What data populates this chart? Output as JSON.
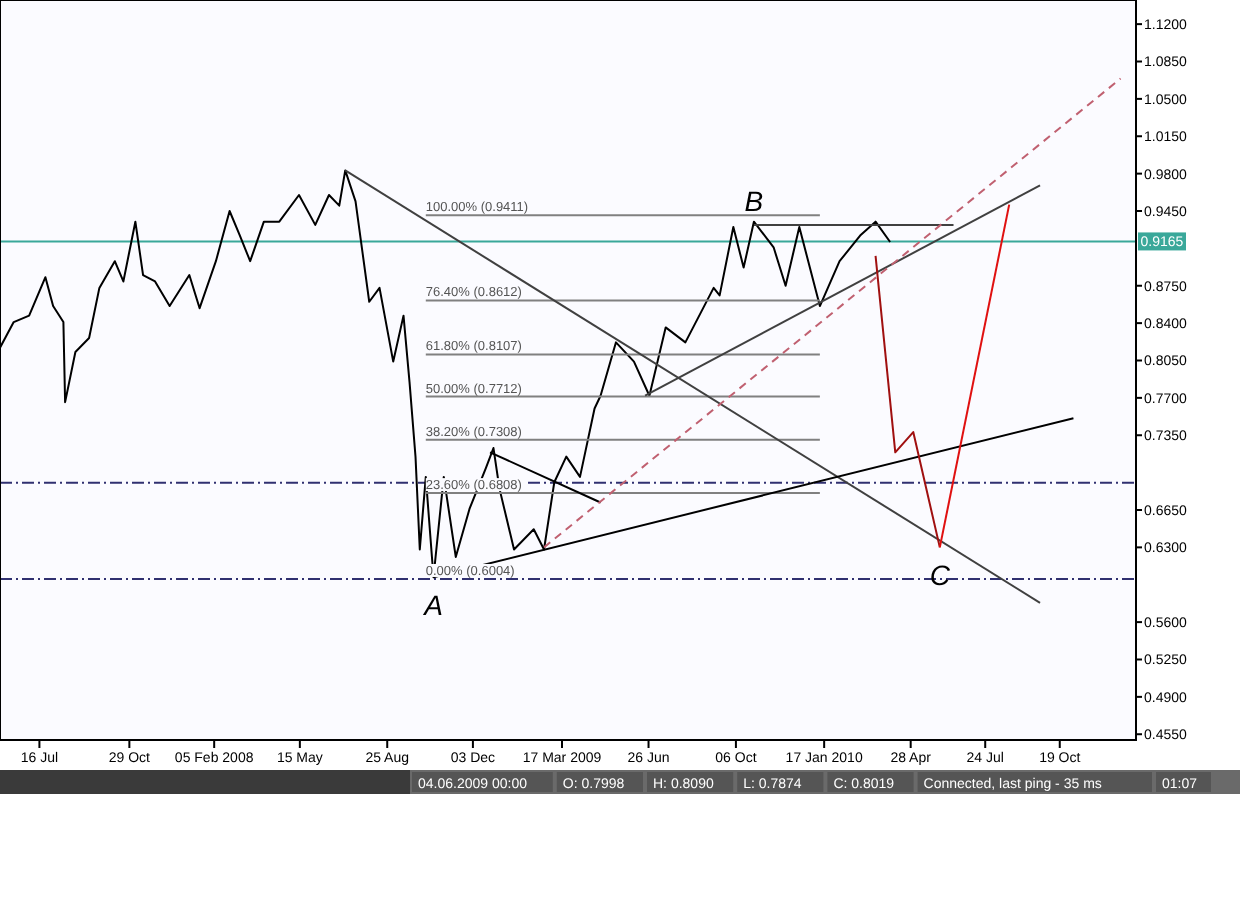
{
  "chart_data": {
    "type": "line",
    "xlim": [
      "2007-05-31",
      "2011-01-16"
    ],
    "xticks": [
      {
        "value": "2007-07-16",
        "label": "16 Jul"
      },
      {
        "value": "2007-10-29",
        "label": "29 Oct"
      },
      {
        "value": "2008-02-05",
        "label": "05 Feb 2008"
      },
      {
        "value": "2008-05-15",
        "label": "15 May"
      },
      {
        "value": "2008-08-25",
        "label": "25 Aug"
      },
      {
        "value": "2008-12-03",
        "label": "03 Dec"
      },
      {
        "value": "2009-03-17",
        "label": "17 Mar 2009"
      },
      {
        "value": "2009-06-26",
        "label": "26 Jun"
      },
      {
        "value": "2009-10-06",
        "label": "06 Oct"
      },
      {
        "value": "2010-01-17",
        "label": "17 Jan 2010"
      },
      {
        "value": "2010-04-28",
        "label": "28 Apr"
      },
      {
        "value": "2010-07-24",
        "label": "24 Jul"
      },
      {
        "value": "2010-10-19",
        "label": "19 Oct"
      }
    ],
    "ylim": [
      0.4496,
      1.1426
    ],
    "yticks": [
      {
        "value": 1.12,
        "label": "1.1200"
      },
      {
        "value": 1.085,
        "label": "1.0850"
      },
      {
        "value": 1.05,
        "label": "1.0500"
      },
      {
        "value": 1.015,
        "label": "1.0150"
      },
      {
        "value": 0.98,
        "label": "0.9800"
      },
      {
        "value": 0.945,
        "label": "0.9450"
      },
      {
        "value": 0.875,
        "label": "0.8750"
      },
      {
        "value": 0.84,
        "label": "0.8400"
      },
      {
        "value": 0.805,
        "label": "0.8050"
      },
      {
        "value": 0.77,
        "label": "0.7700"
      },
      {
        "value": 0.735,
        "label": "0.7350"
      },
      {
        "value": 0.665,
        "label": "0.6650"
      },
      {
        "value": 0.63,
        "label": "0.6300"
      },
      {
        "value": 0.56,
        "label": "0.5600"
      },
      {
        "value": 0.525,
        "label": "0.5250"
      },
      {
        "value": 0.49,
        "label": "0.4900"
      },
      {
        "value": 0.455,
        "label": "0.4550"
      }
    ],
    "grid": false,
    "series": [
      {
        "type": "line",
        "color": "#000000",
        "x": [
          "2007-05-31",
          "2007-06-16",
          "2007-07-04",
          "2007-07-23",
          "2007-08-01",
          "2007-08-13",
          "2007-08-15",
          "2007-08-27",
          "2007-09-12",
          "2007-09-24",
          "2007-10-12",
          "2007-10-22",
          "2007-11-05",
          "2007-11-14",
          "2007-11-28",
          "2007-12-15",
          "2008-01-07",
          "2008-01-19",
          "2008-02-07",
          "2008-02-23",
          "2008-03-06",
          "2008-03-18",
          "2008-04-03",
          "2008-04-21",
          "2008-05-14",
          "2008-06-02",
          "2008-06-18",
          "2008-06-30",
          "2008-07-07",
          "2008-07-19",
          "2008-08-04",
          "2008-08-16",
          "2008-09-01",
          "2008-09-13",
          "2008-09-20",
          "2008-09-27",
          "2008-10-02",
          "2008-10-09",
          "2008-10-18",
          "2008-10-30",
          "2008-11-13",
          "2008-11-29",
          "2008-12-18",
          "2008-12-27",
          "2009-01-03",
          "2009-01-20",
          "2009-02-12",
          "2009-02-24",
          "2009-03-08",
          "2009-03-22",
          "2009-04-07",
          "2009-04-24",
          "2009-05-01",
          "2009-05-19",
          "2009-06-09",
          "2009-06-27",
          "2009-07-16",
          "2009-08-08",
          "2009-09-10",
          "2009-09-17",
          "2009-10-03",
          "2009-10-15",
          "2009-10-27",
          "2009-11-19",
          "2009-12-03",
          "2009-12-19",
          "2010-01-12",
          "2010-02-04",
          "2010-02-28",
          "2010-03-18",
          "2010-04-04"
        ],
        "values": [
          0.817,
          0.841,
          0.847,
          0.883,
          0.856,
          0.841,
          0.766,
          0.813,
          0.826,
          0.873,
          0.898,
          0.879,
          0.935,
          0.885,
          0.879,
          0.856,
          0.885,
          0.854,
          0.898,
          0.945,
          0.922,
          0.898,
          0.935,
          0.935,
          0.96,
          0.932,
          0.96,
          0.95,
          0.983,
          0.954,
          0.86,
          0.873,
          0.804,
          0.847,
          0.785,
          0.715,
          0.628,
          0.696,
          0.602,
          0.696,
          0.621,
          0.666,
          0.704,
          0.723,
          0.685,
          0.628,
          0.647,
          0.628,
          0.691,
          0.715,
          0.696,
          0.76,
          0.772,
          0.822,
          0.804,
          0.772,
          0.836,
          0.822,
          0.873,
          0.866,
          0.93,
          0.892,
          0.935,
          0.911,
          0.875,
          0.93,
          0.856,
          0.898,
          0.922,
          0.935,
          0.916
        ]
      },
      {
        "type": "line",
        "color": "#808080",
        "x": [
          "2008-10-09",
          "2010-01-12"
        ],
        "values": [
          0.9411,
          0.9411
        ]
      },
      {
        "type": "line",
        "color": "#808080",
        "x": [
          "2008-10-09",
          "2010-01-12"
        ],
        "values": [
          0.8612,
          0.8612
        ]
      },
      {
        "type": "line",
        "color": "#808080",
        "x": [
          "2008-10-09",
          "2010-01-12"
        ],
        "values": [
          0.8107,
          0.8107
        ]
      },
      {
        "type": "line",
        "color": "#808080",
        "x": [
          "2008-10-09",
          "2010-01-12"
        ],
        "values": [
          0.7712,
          0.7712
        ]
      },
      {
        "type": "line",
        "color": "#808080",
        "x": [
          "2008-10-09",
          "2010-01-12"
        ],
        "values": [
          0.7308,
          0.7308
        ]
      },
      {
        "type": "line",
        "color": "#808080",
        "x": [
          "2008-10-09",
          "2010-01-12"
        ],
        "values": [
          0.6808,
          0.6808
        ]
      },
      {
        "type": "line",
        "color": "#404040",
        "x": [
          "2008-07-07",
          "2010-09-26"
        ],
        "values": [
          0.983,
          0.578
        ]
      },
      {
        "type": "line",
        "color": "#000000",
        "x": [
          "2008-10-18",
          "2010-11-04"
        ],
        "values": [
          0.602,
          0.751
        ]
      },
      {
        "type": "line",
        "color": "#000000",
        "x": [
          "2008-12-23",
          "2009-05-01"
        ],
        "values": [
          0.719,
          0.672
        ]
      },
      {
        "type": "line",
        "color": "#404040",
        "x": [
          "2009-06-22",
          "2010-09-26"
        ],
        "values": [
          0.772,
          0.969
        ]
      },
      {
        "type": "line",
        "color": "#404040",
        "x": [
          "2009-10-27",
          "2010-06-17"
        ],
        "values": [
          0.932,
          0.932
        ]
      },
      {
        "type": "line",
        "color": "#c06070",
        "line_style": "dashed",
        "x": [
          "2009-02-24",
          "2010-12-29"
        ],
        "values": [
          0.63,
          1.069
        ]
      },
      {
        "type": "line",
        "color": "#a01010",
        "x": [
          "2010-03-18",
          "2010-04-10",
          "2010-05-01",
          "2010-06-01"
        ],
        "values": [
          0.903,
          0.719,
          0.738,
          0.63
        ]
      },
      {
        "type": "line",
        "color": "#e01010",
        "x": [
          "2010-06-01",
          "2010-08-21"
        ],
        "values": [
          0.63,
          0.951
        ]
      }
    ],
    "ref_lines": [
      {
        "axis": "y",
        "value": 0.9165,
        "label": "0.9165",
        "color": "#3aa89a"
      },
      {
        "axis": "y",
        "value": 0.6906,
        "color": "#303070",
        "line_style": "dashdot"
      },
      {
        "axis": "y",
        "value": 0.6004,
        "color": "#303070",
        "line_style": "dashdot"
      }
    ],
    "annotations": [
      {
        "text": "100.00% (0.9411)",
        "x": "2008-10-09",
        "y": 0.9411
      },
      {
        "text": "76.40% (0.8612)",
        "x": "2008-10-09",
        "y": 0.8612
      },
      {
        "text": "61.80% (0.8107)",
        "x": "2008-10-09",
        "y": 0.8107
      },
      {
        "text": "50.00% (0.7712)",
        "x": "2008-10-09",
        "y": 0.7712
      },
      {
        "text": "38.20% (0.7308)",
        "x": "2008-10-09",
        "y": 0.7308
      },
      {
        "text": "23.60% (0.6808)",
        "x": "2008-10-09",
        "y": 0.6808
      },
      {
        "text": "0.00% (0.6004)",
        "x": "2008-10-09",
        "y": 0.6004
      },
      {
        "text": "A",
        "x": "2008-10-18",
        "y": 0.602
      },
      {
        "text": "B",
        "x": "2009-10-27",
        "y": 0.935
      },
      {
        "text": "C",
        "x": "2010-06-01",
        "y": 0.63
      },
      "04.06.2009 00:00",
      "O: 0.7998",
      "H: 0.8090",
      "L: 0.7874",
      "C: 0.8019",
      "Connected, last ping - 35 ms",
      "01:07"
    ]
  }
}
